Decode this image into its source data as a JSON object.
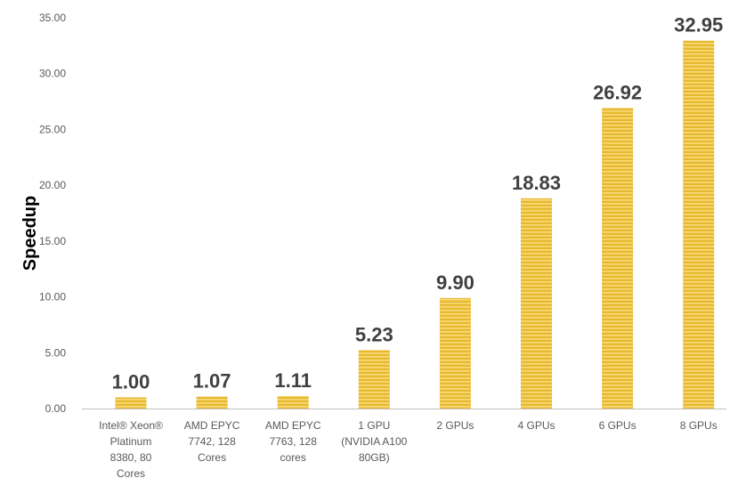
{
  "chart_data": {
    "type": "bar",
    "ylabel": "Speedup",
    "xlabel": "",
    "title": "",
    "ylim": [
      0,
      35
    ],
    "yticks": [
      "0.00",
      "5.00",
      "10.00",
      "15.00",
      "20.00",
      "25.00",
      "30.00",
      "35.00"
    ],
    "categories": [
      [
        "Intel® Xeon®",
        "Platinum",
        "8380, 80",
        "Cores"
      ],
      [
        "AMD EPYC",
        "7742, 128",
        "Cores"
      ],
      [
        "AMD EPYC",
        "7763, 128",
        "cores"
      ],
      [
        "1 GPU",
        "(NVIDIA A100",
        "80GB)"
      ],
      [
        "2 GPUs"
      ],
      [
        "4 GPUs"
      ],
      [
        "6 GPUs"
      ],
      [
        "8 GPUs"
      ]
    ],
    "values": [
      1.0,
      1.07,
      1.11,
      5.23,
      9.9,
      18.83,
      26.92,
      32.95
    ],
    "data_labels": [
      "1.00",
      "1.07",
      "1.11",
      "5.23",
      "9.90",
      "18.83",
      "26.92",
      "32.95"
    ],
    "bar_color": "#e8b830",
    "stripe_color": "#f7dc7a",
    "grid": false
  }
}
